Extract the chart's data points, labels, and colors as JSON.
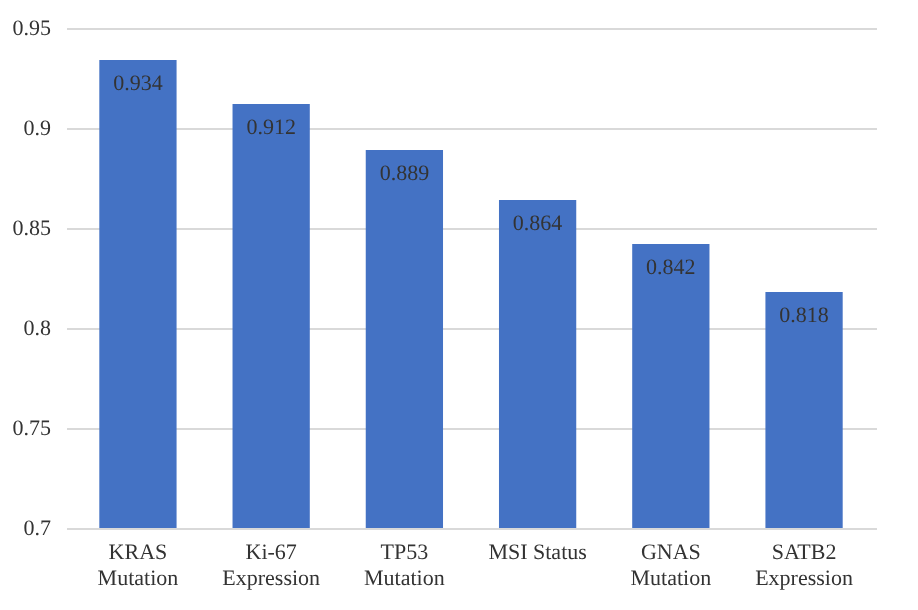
{
  "chart_data": {
    "type": "bar",
    "categories": [
      "KRAS Mutation",
      "Ki-67 Expression",
      "TP53 Mutation",
      "MSI Status",
      "GNAS Mutation",
      "SATB2 Expression"
    ],
    "values": [
      0.934,
      0.912,
      0.889,
      0.864,
      0.842,
      0.818
    ],
    "color": "#4472c4",
    "ylim": [
      0.7,
      0.95
    ],
    "yticks": [
      0.7,
      0.75,
      0.8,
      0.85,
      0.9,
      0.95
    ],
    "grid": "y",
    "data_labels": true
  }
}
